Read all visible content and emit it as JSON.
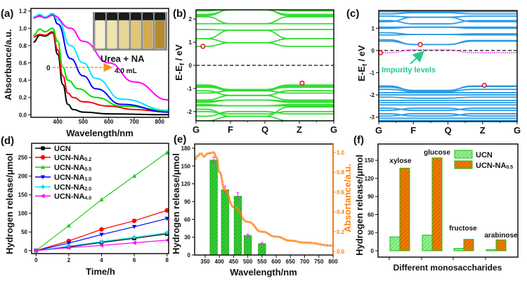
{
  "colors": {
    "green": "#33cc33",
    "blue_band": "#2b9be6",
    "orange": "#ff7f0e",
    "red_marker": "#e8141c",
    "impurity": "#22cc88",
    "magenta": "#ee22ee"
  },
  "chart_data": [
    {
      "panel": "(a)",
      "type": "line",
      "xlabel": "Wavelength/nm",
      "ylabel": "Absorbance/a.u.",
      "xlim": [
        295,
        835
      ],
      "ylim": [
        -0.03,
        1.23
      ],
      "xticks": [
        400,
        500,
        600,
        700,
        800
      ],
      "yticks": [
        0.0,
        0.2,
        0.4,
        0.6,
        0.8,
        1.0,
        1.2
      ],
      "ytick_labels": [
        "0.0",
        "0.2",
        "0.4",
        "0.6",
        "0.8",
        "1.0",
        "1.2"
      ],
      "inset": {
        "label": "Urea + NA",
        "arrow_start": "0",
        "arrow_end": "4.0 mL",
        "vial_colors": [
          "#f4f0cc",
          "#eee4ae",
          "#e8d596",
          "#e1c678",
          "#d2ab52",
          "#b48a2c"
        ]
      },
      "series": [
        {
          "color": "#000000",
          "points": [
            [
              305,
              0.84
            ],
            [
              330,
              0.92
            ],
            [
              350,
              0.91
            ],
            [
              380,
              0.95
            ],
            [
              400,
              0.7
            ],
            [
              420,
              0.35
            ],
            [
              440,
              0.12
            ],
            [
              460,
              0.06
            ],
            [
              500,
              0.03
            ],
            [
              600,
              0.01
            ],
            [
              835,
              0.0
            ]
          ]
        },
        {
          "color": "#ff0000",
          "points": [
            [
              305,
              0.9
            ],
            [
              330,
              0.93
            ],
            [
              350,
              0.92
            ],
            [
              380,
              0.96
            ],
            [
              400,
              0.75
            ],
            [
              420,
              0.45
            ],
            [
              440,
              0.25
            ],
            [
              460,
              0.2
            ],
            [
              500,
              0.15
            ],
            [
              600,
              0.1
            ],
            [
              700,
              0.06
            ],
            [
              835,
              0.03
            ]
          ]
        },
        {
          "color": "#00dd00",
          "points": [
            [
              305,
              0.92
            ],
            [
              330,
              0.99
            ],
            [
              350,
              0.96
            ],
            [
              380,
              1.0
            ],
            [
              400,
              0.85
            ],
            [
              420,
              0.55
            ],
            [
              440,
              0.4
            ],
            [
              480,
              0.3
            ],
            [
              550,
              0.2
            ],
            [
              650,
              0.1
            ],
            [
              835,
              0.05
            ]
          ]
        },
        {
          "color": "#0000ff",
          "points": [
            [
              305,
              1.12
            ],
            [
              330,
              1.15
            ],
            [
              350,
              1.12
            ],
            [
              380,
              1.16
            ],
            [
              400,
              1.05
            ],
            [
              450,
              0.65
            ],
            [
              500,
              0.45
            ],
            [
              550,
              0.3
            ],
            [
              650,
              0.12
            ],
            [
              835,
              0.03
            ]
          ]
        },
        {
          "color": "#00e5ff",
          "points": [
            [
              305,
              1.13
            ],
            [
              330,
              1.16
            ],
            [
              350,
              1.13
            ],
            [
              380,
              1.17
            ],
            [
              400,
              1.1
            ],
            [
              450,
              0.8
            ],
            [
              500,
              0.6
            ],
            [
              550,
              0.42
            ],
            [
              650,
              0.18
            ],
            [
              835,
              0.05
            ]
          ]
        },
        {
          "color": "#ff00ff",
          "points": [
            [
              305,
              1.12
            ],
            [
              330,
              1.14
            ],
            [
              350,
              1.12
            ],
            [
              380,
              1.15
            ],
            [
              450,
              1.0
            ],
            [
              500,
              0.85
            ],
            [
              600,
              0.6
            ],
            [
              700,
              0.38
            ],
            [
              835,
              0.17
            ]
          ]
        }
      ]
    },
    {
      "panel": "(b)",
      "type": "line",
      "ylabel": "E-E",
      "ylabel_sub": "f",
      "ylabel_unit": " / eV",
      "ylim": [
        -2.4,
        2.4
      ],
      "yticks": [
        -2,
        -1,
        0,
        1,
        2
      ],
      "ytick_labels": [
        "-2",
        "-1",
        "0",
        "1",
        "2"
      ],
      "kpoints": [
        "G",
        "F",
        "Q",
        "Z",
        "G"
      ],
      "band_color": "#33dd33",
      "bands": [
        [
          0.82,
          0.98,
          0.82
        ],
        [
          1.15,
          0.98,
          1.15
        ],
        [
          1.15,
          1.52,
          1.15
        ],
        [
          1.55,
          1.52,
          1.55
        ],
        [
          1.8,
          1.8,
          1.8
        ],
        [
          2.1,
          1.8,
          2.1
        ],
        [
          2.15,
          2.4,
          2.15
        ],
        [
          2.2,
          2.4,
          2.2
        ],
        [
          2.35,
          2.45,
          2.35
        ],
        [
          -0.85,
          -1.05,
          -0.85
        ],
        [
          -0.9,
          -1.1,
          -0.9
        ],
        [
          -0.95,
          -1.05,
          -0.95
        ],
        [
          -1.1,
          -1.3,
          -1.1
        ],
        [
          -1.2,
          -1.1,
          -1.2
        ],
        [
          -1.5,
          -1.3,
          -1.5
        ],
        [
          -1.55,
          -1.5,
          -1.55
        ],
        [
          -1.6,
          -1.5,
          -1.6
        ],
        [
          -1.7,
          -1.75,
          -1.7
        ],
        [
          -1.75,
          -1.75,
          -1.75
        ],
        [
          -2.0,
          -2.1,
          -2.0
        ],
        [
          -1.9,
          -2.2,
          -1.8
        ],
        [
          -2.2,
          -2.0,
          -2.1
        ],
        [
          -2.4,
          -2.2,
          -2.4
        ]
      ],
      "markers": [
        [
          0.2,
          0.82
        ],
        [
          3.08,
          -0.77
        ]
      ]
    },
    {
      "panel": "(c)",
      "type": "line",
      "ylabel": "E-E",
      "ylabel_sub": "f",
      "ylabel_unit": " / eV",
      "ylim": [
        -3.2,
        1.8
      ],
      "yticks": [
        -3,
        -2,
        -1,
        0,
        1
      ],
      "ytick_labels": [
        "-3",
        "-2",
        "-1",
        "0",
        "1"
      ],
      "kpoints": [
        "G",
        "F",
        "Q",
        "Z",
        "G"
      ],
      "band_color": "#2b9be6",
      "bands": [
        [
          0.42,
          0.27,
          0.42
        ],
        [
          0.48,
          0.27,
          0.45
        ],
        [
          0.7,
          0.72,
          0.7
        ],
        [
          0.8,
          0.72,
          0.75
        ],
        [
          1.0,
          1.05,
          1.0
        ],
        [
          1.05,
          1.05,
          1.05
        ],
        [
          1.35,
          1.2,
          1.35
        ],
        [
          1.3,
          1.5,
          1.3
        ],
        [
          1.55,
          1.5,
          1.55
        ],
        [
          1.65,
          1.7,
          1.65
        ],
        [
          1.75,
          1.75,
          1.75
        ],
        [
          -1.6,
          -1.8,
          -1.6
        ],
        [
          -1.65,
          -1.8,
          -1.62
        ],
        [
          -1.75,
          -1.85,
          -1.75
        ],
        [
          -1.9,
          -1.9,
          -1.9
        ],
        [
          -2.0,
          -2.0,
          -2.0
        ],
        [
          -2.1,
          -2.15,
          -2.1
        ],
        [
          -2.25,
          -2.25,
          -2.25
        ],
        [
          -2.35,
          -2.35,
          -2.35
        ],
        [
          -2.45,
          -2.45,
          -2.45
        ],
        [
          -2.6,
          -2.7,
          -2.6
        ],
        [
          -2.7,
          -2.6,
          -2.7
        ],
        [
          -2.85,
          -2.95,
          -2.85
        ],
        [
          -2.95,
          -2.85,
          -2.95
        ],
        [
          -3.05,
          -3.05,
          -3.05
        ],
        [
          -3.15,
          -3.15,
          -3.15
        ]
      ],
      "impurity_band": [
        -0.1,
        0.03,
        -0.1
      ],
      "annotation": "Impurity levels",
      "markers": [
        [
          0.05,
          -0.1
        ],
        [
          1.2,
          0.27
        ],
        [
          3.05,
          -1.57
        ]
      ]
    },
    {
      "panel": "(d)",
      "type": "line",
      "xlabel": "Time/h",
      "ylabel": "Hydrogen release/μmol",
      "xlim": [
        -0.27,
        8.1
      ],
      "ylim": [
        -8,
        288
      ],
      "xticks": [
        0,
        2,
        4,
        6,
        8
      ],
      "xtick_labels": [
        "0",
        "2",
        "4",
        "6",
        "8"
      ],
      "yticks": [
        0,
        50,
        100,
        150,
        200,
        250
      ],
      "ytick_labels": [
        "0",
        "50",
        "100",
        "150",
        "200",
        "250"
      ],
      "x": [
        0,
        2,
        4,
        6,
        8
      ],
      "series": [
        {
          "name": "UCN",
          "sub": "",
          "color": "#000000",
          "marker": "square",
          "values": [
            0,
            10,
            22,
            33,
            45
          ]
        },
        {
          "name": "UCN-NA",
          "sub": "0.2",
          "color": "#ff0000",
          "marker": "circle",
          "values": [
            0,
            26,
            57,
            80,
            108
          ]
        },
        {
          "name": "UCN-NA",
          "sub": "0.5",
          "color": "#22cc22",
          "marker": "triangle-up",
          "values": [
            0,
            67,
            137,
            200,
            263
          ]
        },
        {
          "name": "UCN-NA",
          "sub": "1.0",
          "color": "#0000ff",
          "marker": "triangle-down",
          "values": [
            0,
            20,
            43,
            64,
            86
          ]
        },
        {
          "name": "UCN-NA",
          "sub": "2.0",
          "color": "#00e0f0",
          "marker": "diamond",
          "values": [
            0,
            12,
            24,
            36,
            48
          ]
        },
        {
          "name": "UCN-NA",
          "sub": "4.0",
          "color": "#ff00ff",
          "marker": "triangle-left",
          "values": [
            0,
            8,
            14,
            21,
            28
          ]
        }
      ]
    },
    {
      "panel": "(e)",
      "type": "bar",
      "xlabel": "Wavelength/nm",
      "ylabel": "Hydrogen release/μmol",
      "y2label": "Absortance/a.u.",
      "xlim": [
        313,
        800
      ],
      "ylim": [
        0,
        187
      ],
      "y2lim": [
        -0.035,
        1.085
      ],
      "xticks": [
        350,
        400,
        450,
        500,
        550,
        600,
        650,
        700,
        750,
        800
      ],
      "xtick_labels": [
        "350",
        "400",
        "450",
        "500",
        "550",
        "600",
        "650",
        "700",
        "750",
        "800"
      ],
      "yticks": [
        0,
        30,
        60,
        90,
        120,
        150,
        180
      ],
      "ytick_labels": [
        "0",
        "30",
        "60",
        "90",
        "120",
        "150",
        "180"
      ],
      "y2ticks": [
        0,
        0.2,
        0.4,
        0.6,
        0.8,
        1.0
      ],
      "y2tick_labels": [
        "0.0",
        "0.2",
        "0.4",
        "0.6",
        "0.8",
        "1.0"
      ],
      "bars": {
        "x": [
          380,
          420,
          465,
          500,
          550
        ],
        "values": [
          160,
          110,
          99,
          33,
          19
        ],
        "errors": [
          5,
          6,
          6,
          2,
          1.5
        ]
      },
      "absorptance": [
        [
          313,
          0.93
        ],
        [
          325,
          0.97
        ],
        [
          335,
          0.99
        ],
        [
          345,
          0.96
        ],
        [
          360,
          0.99
        ],
        [
          380,
          1.0
        ],
        [
          390,
          0.95
        ],
        [
          400,
          0.8
        ],
        [
          420,
          0.62
        ],
        [
          450,
          0.45
        ],
        [
          500,
          0.3
        ],
        [
          550,
          0.2
        ],
        [
          600,
          0.15
        ],
        [
          650,
          0.11
        ],
        [
          700,
          0.09
        ],
        [
          800,
          0.06
        ]
      ]
    },
    {
      "panel": "(f)",
      "type": "bar",
      "xlabel": "Different monosaccharides",
      "ylabel": "Hydrogen release/μmol",
      "ylim": [
        -10.5,
        177
      ],
      "yticks": [
        0,
        30,
        60,
        90,
        120,
        150
      ],
      "ytick_labels": [
        "0",
        "30",
        "60",
        "90",
        "120",
        "150"
      ],
      "categories": [
        "xylose",
        "glucose",
        "fructose",
        "arabinose"
      ],
      "series": [
        {
          "name": "UCN",
          "sub": "",
          "color": "#7ee87e",
          "values": [
            23,
            26,
            4,
            2
          ]
        },
        {
          "name": "UCN-NA",
          "sub": "0.5",
          "color": "#e87000",
          "values": [
            137,
            154,
            19,
            18
          ]
        }
      ]
    }
  ]
}
